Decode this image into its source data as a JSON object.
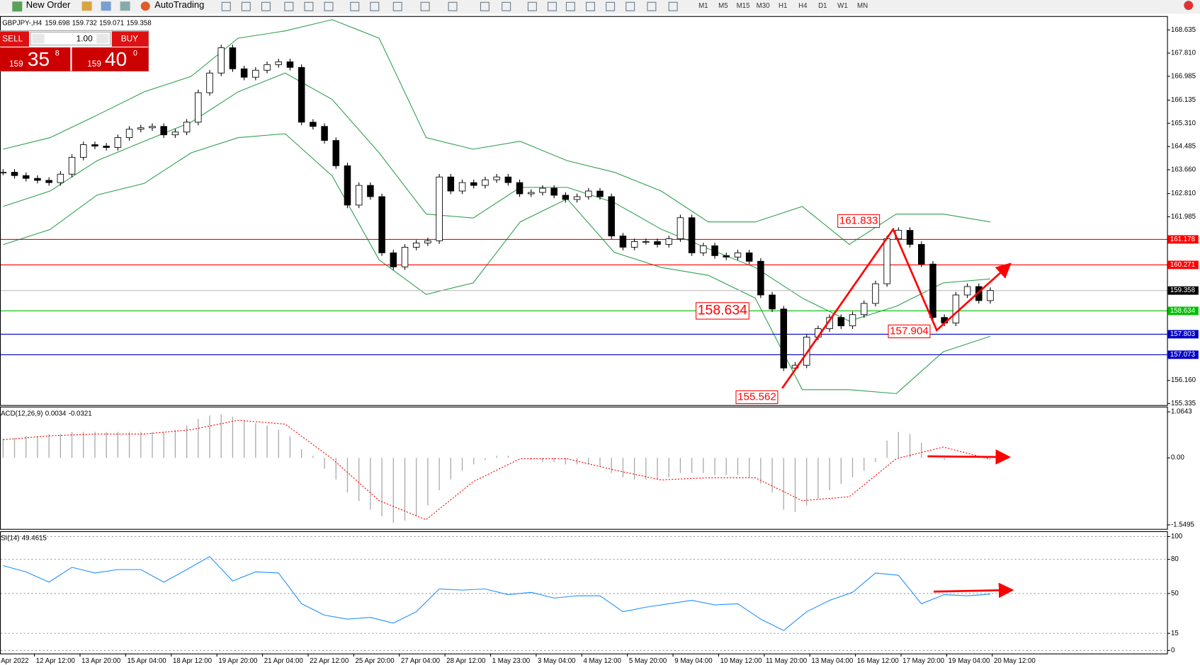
{
  "toolbar": {
    "new_order": "New Order",
    "auto_trading": "AutoTrading",
    "timeframes": [
      "M1",
      "M5",
      "M15",
      "M30",
      "H1",
      "H4",
      "D1",
      "W1",
      "MN"
    ]
  },
  "trade_panel": {
    "sell": "SELL",
    "buy": "BUY",
    "volume": "1.00",
    "sell_price": {
      "big": "159",
      "pips": "35",
      "point": "8"
    },
    "buy_price": {
      "big": "159",
      "pips": "40",
      "point": "0"
    }
  },
  "time_axis": {
    "labels": [
      "Apr 2022",
      "12 Apr 12:00",
      "13 Apr 20:00",
      "15 Apr 04:00",
      "18 Apr 12:00",
      "19 Apr 20:00",
      "21 Apr 04:00",
      "22 Apr 12:00",
      "25 Apr 20:00",
      "27 Apr 04:00",
      "28 Apr 12:00",
      "1 May 23:00",
      "3 May 04:00",
      "4 May 12:00",
      "5 May 20:00",
      "9 May 04:00",
      "10 May 12:00",
      "11 May 20:00",
      "13 May 04:00",
      "16 May 12:00",
      "17 May 20:00",
      "19 May 04:00",
      "20 May 12:00"
    ]
  },
  "chart_data": [
    {
      "type": "candlestick",
      "title": "GBPJPY-,H4",
      "open": 159.698,
      "high": 159.732,
      "low": 159.071,
      "closes": [
        163.57,
        163.45,
        163.35,
        163.28,
        163.2,
        163.5,
        164.1,
        164.55,
        164.5,
        164.45,
        164.8,
        165.1,
        165.15,
        165.2,
        164.9,
        165.0,
        165.35,
        166.4,
        167.1,
        168.0,
        167.25,
        166.95,
        167.2,
        167.4,
        167.5,
        167.3,
        165.35,
        165.2,
        164.7,
        163.8,
        162.4,
        163.1,
        162.7,
        160.7,
        160.2,
        160.9,
        161.05,
        161.13,
        163.4,
        162.9,
        163.2,
        163.1,
        163.3,
        163.4,
        163.2,
        162.8,
        162.85,
        163.0,
        162.75,
        162.6,
        162.7,
        162.9,
        162.7,
        161.3,
        160.9,
        161.1,
        161.1,
        161.0,
        161.2,
        161.95,
        160.7,
        160.95,
        160.6,
        160.55,
        160.7,
        160.4,
        159.2,
        158.7,
        156.6,
        156.7,
        157.7,
        158.0,
        158.4,
        158.1,
        158.5,
        158.9,
        159.6,
        161.2,
        161.5,
        161.0,
        160.3,
        158.4,
        158.2,
        159.2,
        159.5,
        159.0,
        159.358
      ],
      "bands": {
        "color": "#2e9e4f",
        "upper": [
          164.39,
          164.8,
          165.6,
          166.43,
          166.98,
          168.34,
          168.6,
          169.0,
          168.34,
          164.8,
          164.39,
          164.67,
          163.98,
          163.57,
          162.9,
          161.8,
          161.8,
          162.35,
          161.0,
          162.08,
          162.08,
          161.8
        ],
        "middle": [
          162.35,
          162.9,
          163.98,
          164.67,
          165.35,
          166.43,
          167.1,
          166.16,
          164.26,
          162.08,
          161.94,
          163.03,
          163.03,
          162.49,
          161.54,
          160.85,
          160.18,
          159.09,
          158.27,
          158.8,
          159.63,
          159.77
        ],
        "lower": [
          160.99,
          161.53,
          162.76,
          163.17,
          164.26,
          164.8,
          164.94,
          163.44,
          160.45,
          159.22,
          159.63,
          161.8,
          162.62,
          160.72,
          160.18,
          159.9,
          159.09,
          155.83,
          155.83,
          155.69,
          157.18,
          157.73
        ]
      },
      "levels": [
        {
          "value": 161.178,
          "color": "#ff0000",
          "label_color": "#ff0000"
        },
        {
          "value": 160.271,
          "color": "#ff0000",
          "label_color": "#ff0000"
        },
        {
          "value": 159.358,
          "color": "#c0c0c0",
          "label_color": "#000000"
        },
        {
          "value": 158.634,
          "color": "#00c000",
          "label_color": "#00c000"
        },
        {
          "value": 157.803,
          "color": "#0000c8",
          "label_color": "#0000c8"
        },
        {
          "value": 157.073,
          "color": "#0000c8",
          "label_color": "#0000c8"
        }
      ],
      "annotations": [
        161.833,
        158.634,
        157.904,
        155.562
      ],
      "ylim": [
        155.28,
        169.1
      ],
      "yticks": [
        168.635,
        {
          "value": 167.81,
          "label": "167.810"
        },
        166.985,
        166.135,
        {
          "value": 165.31,
          "label": "165.310"
        },
        164.485,
        {
          "value": 163.66,
          "label": "163.660"
        },
        {
          "value": 162.81,
          "label": "162.810"
        },
        161.985,
        {
          "value": 156.16,
          "label": "156.160"
        },
        155.335
      ]
    },
    {
      "type": "macd",
      "title": "ACD(12,26,9)",
      "series": [
        {
          "name": "histogram",
          "color": "#a8a8a8",
          "values": [
            0.45,
            0.45,
            0.5,
            0.5,
            0.55,
            0.55,
            0.6,
            0.6,
            0.6,
            0.6,
            0.6,
            0.6,
            0.6,
            0.6,
            0.6,
            0.65,
            0.75,
            0.9,
            0.98,
            1.0,
            0.95,
            0.85,
            0.8,
            0.75,
            0.65,
            0.5,
            0.2,
            0.05,
            -0.25,
            -0.5,
            -0.8,
            -1.0,
            -1.2,
            -1.35,
            -1.5,
            -1.45,
            -1.35,
            -1.1,
            -0.75,
            -0.5,
            -0.3,
            -0.15,
            -0.05,
            0.05,
            0.05,
            0.0,
            -0.05,
            -0.1,
            -0.1,
            -0.15,
            -0.15,
            -0.15,
            -0.2,
            -0.35,
            -0.45,
            -0.5,
            -0.5,
            -0.5,
            -0.45,
            -0.35,
            -0.35,
            -0.35,
            -0.4,
            -0.4,
            -0.4,
            -0.45,
            -0.6,
            -0.8,
            -1.2,
            -1.25,
            -1.1,
            -0.95,
            -0.75,
            -0.6,
            -0.45,
            -0.3,
            -0.1,
            0.4,
            0.6,
            0.55,
            0.35,
            0.0,
            -0.05,
            0.0,
            0.0,
            0.02,
            0.0034
          ]
        },
        {
          "name": "signal",
          "color": "#ff0000",
          "values": [
            0.42,
            0.51,
            0.55,
            0.55,
            0.65,
            0.87,
            0.78,
            -0.02,
            -0.99,
            -1.43,
            -0.55,
            -0.02,
            -0.02,
            -0.28,
            -0.51,
            -0.46,
            -0.46,
            -0.99,
            -0.9,
            -0.02,
            0.25,
            -0.0321
          ]
        }
      ],
      "ylim": [
        -1.643,
        1.184
      ],
      "yticks": [
        1.0643,
        {
          "value": 0,
          "label": "0.00"
        },
        -1.5495
      ]
    },
    {
      "type": "line",
      "title": "SI(14)",
      "color": "#1e90ff",
      "values": [
        74.5,
        69,
        60,
        73,
        68,
        71,
        71,
        60,
        71,
        82.5,
        61,
        69,
        68,
        41,
        31,
        27.5,
        29,
        24,
        34,
        54,
        53,
        54,
        49,
        51,
        46,
        48,
        48,
        34,
        38,
        41,
        44,
        40,
        41,
        27.5,
        17.5,
        34,
        44,
        51,
        68,
        66,
        41,
        49,
        48,
        49.4615
      ],
      "ylim": [
        -2.7,
        104.7
      ],
      "yticks": [
        100,
        80,
        50,
        15,
        0
      ],
      "grid": true
    }
  ]
}
